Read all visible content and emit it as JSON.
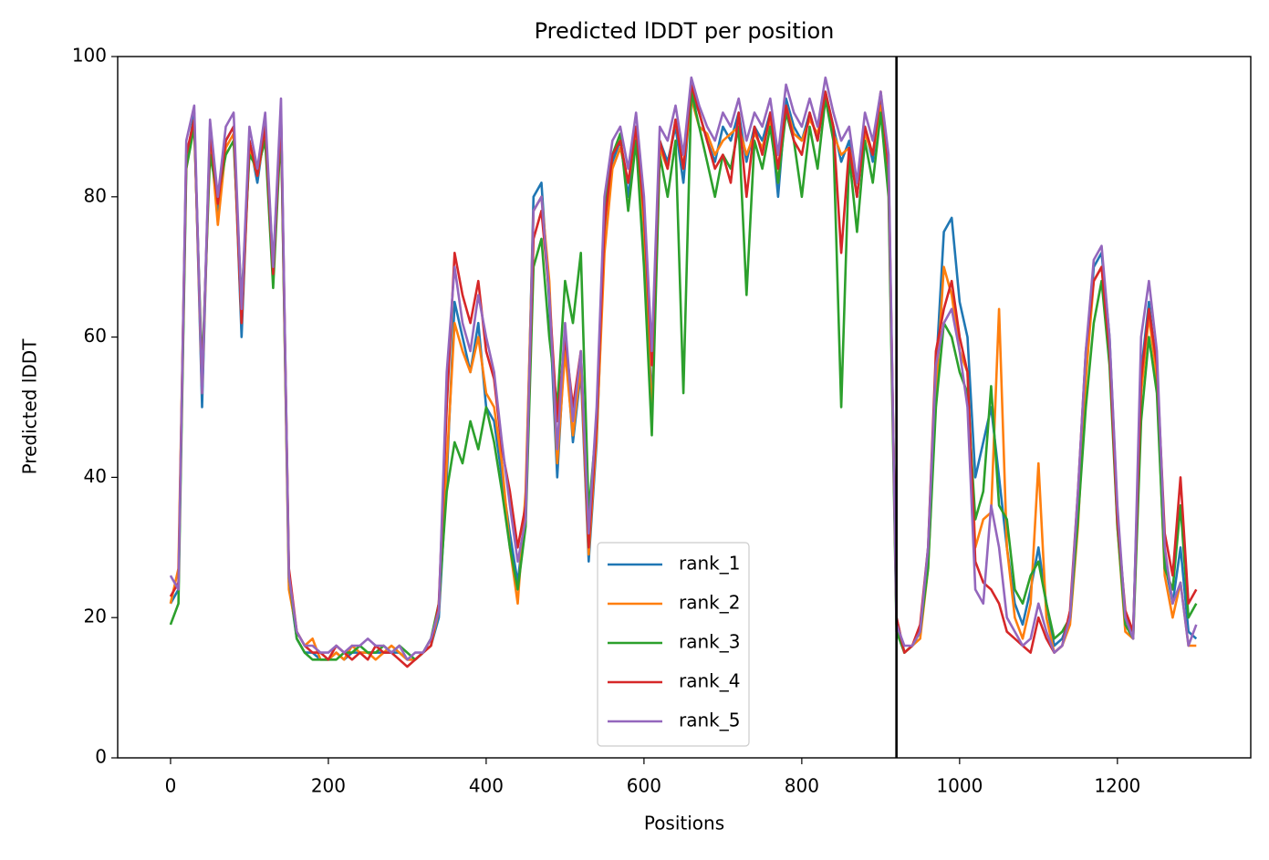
{
  "chart_data": {
    "type": "line",
    "title": "Predicted lDDT per position",
    "xlabel": "Positions",
    "ylabel": "Predicted lDDT",
    "xlim": [
      -67,
      1369
    ],
    "ylim": [
      0,
      100
    ],
    "xticks": [
      0,
      200,
      400,
      600,
      800,
      1000,
      1200
    ],
    "yticks": [
      0,
      20,
      40,
      60,
      80,
      100
    ],
    "legend": "lower center",
    "vline": 920,
    "vline_color": "#000000",
    "x": [
      0,
      10,
      20,
      30,
      40,
      50,
      60,
      70,
      80,
      90,
      100,
      110,
      120,
      130,
      140,
      150,
      160,
      170,
      180,
      190,
      200,
      210,
      220,
      230,
      240,
      250,
      260,
      270,
      280,
      290,
      300,
      310,
      320,
      330,
      340,
      350,
      360,
      370,
      380,
      390,
      400,
      410,
      420,
      430,
      440,
      450,
      460,
      470,
      480,
      490,
      500,
      510,
      520,
      530,
      540,
      550,
      560,
      570,
      580,
      590,
      600,
      610,
      620,
      630,
      640,
      650,
      660,
      670,
      680,
      690,
      700,
      710,
      720,
      730,
      740,
      750,
      760,
      770,
      780,
      790,
      800,
      810,
      820,
      830,
      840,
      850,
      860,
      870,
      880,
      890,
      900,
      910,
      920,
      930,
      940,
      950,
      960,
      970,
      980,
      990,
      1000,
      1010,
      1020,
      1030,
      1040,
      1050,
      1060,
      1070,
      1080,
      1090,
      1100,
      1110,
      1120,
      1130,
      1140,
      1150,
      1160,
      1170,
      1180,
      1190,
      1200,
      1210,
      1220,
      1230,
      1240,
      1250,
      1260,
      1270,
      1280,
      1290,
      1300
    ],
    "series": [
      {
        "name": "rank_1",
        "color": "#1f77b4",
        "values": [
          22,
          24,
          85,
          92,
          50,
          90,
          78,
          88,
          90,
          60,
          88,
          82,
          90,
          70,
          92,
          25,
          17,
          15,
          15,
          14,
          14,
          15,
          14,
          15,
          15,
          15,
          15,
          15,
          15,
          15,
          14,
          14,
          15,
          16,
          20,
          40,
          65,
          60,
          55,
          62,
          50,
          48,
          40,
          32,
          25,
          35,
          80,
          82,
          65,
          40,
          60,
          45,
          55,
          28,
          45,
          75,
          85,
          88,
          80,
          90,
          75,
          50,
          88,
          85,
          90,
          82,
          95,
          92,
          88,
          85,
          90,
          88,
          92,
          85,
          90,
          88,
          92,
          80,
          94,
          90,
          88,
          92,
          88,
          95,
          90,
          85,
          88,
          80,
          90,
          85,
          94,
          82,
          20,
          15,
          16,
          18,
          28,
          55,
          75,
          77,
          65,
          60,
          40,
          45,
          50,
          40,
          30,
          22,
          19,
          24,
          30,
          22,
          16,
          17,
          20,
          35,
          55,
          70,
          72,
          60,
          35,
          20,
          18,
          55,
          65,
          55,
          28,
          22,
          30,
          18,
          17
        ]
      },
      {
        "name": "rank_2",
        "color": "#ff7f0e",
        "values": [
          22,
          27,
          86,
          91,
          52,
          89,
          76,
          87,
          89,
          62,
          87,
          83,
          89,
          68,
          91,
          24,
          18,
          16,
          17,
          14,
          14,
          15,
          14,
          16,
          15,
          15,
          14,
          15,
          16,
          15,
          14,
          14,
          15,
          16,
          21,
          42,
          62,
          58,
          55,
          60,
          52,
          50,
          42,
          30,
          22,
          38,
          78,
          80,
          68,
          42,
          58,
          46,
          56,
          29,
          46,
          72,
          84,
          87,
          82,
          89,
          76,
          48,
          87,
          84,
          91,
          84,
          94,
          90,
          89,
          86,
          88,
          89,
          90,
          86,
          89,
          87,
          91,
          82,
          93,
          89,
          88,
          91,
          89,
          94,
          89,
          86,
          87,
          82,
          89,
          86,
          93,
          84,
          19,
          15,
          16,
          17,
          27,
          52,
          70,
          66,
          58,
          55,
          30,
          34,
          35,
          64,
          30,
          20,
          17,
          22,
          42,
          20,
          15,
          16,
          19,
          33,
          54,
          68,
          70,
          58,
          33,
          18,
          17,
          52,
          63,
          54,
          26,
          20,
          25,
          16,
          16
        ]
      },
      {
        "name": "rank_3",
        "color": "#2ca02c",
        "values": [
          19,
          22,
          84,
          90,
          55,
          86,
          80,
          86,
          88,
          65,
          86,
          84,
          88,
          67,
          90,
          26,
          17,
          15,
          14,
          14,
          14,
          14,
          15,
          15,
          16,
          15,
          15,
          16,
          15,
          16,
          15,
          14,
          15,
          17,
          22,
          38,
          45,
          42,
          48,
          44,
          50,
          45,
          38,
          30,
          24,
          33,
          70,
          74,
          60,
          50,
          68,
          62,
          72,
          35,
          48,
          78,
          86,
          89,
          78,
          88,
          70,
          46,
          86,
          80,
          88,
          52,
          95,
          90,
          85,
          80,
          86,
          84,
          90,
          66,
          88,
          84,
          90,
          82,
          92,
          88,
          80,
          90,
          84,
          94,
          88,
          50,
          86,
          75,
          88,
          82,
          92,
          80,
          18,
          15,
          16,
          18,
          27,
          50,
          62,
          60,
          55,
          52,
          34,
          38,
          53,
          36,
          34,
          24,
          22,
          26,
          28,
          22,
          17,
          18,
          20,
          34,
          50,
          62,
          68,
          56,
          33,
          19,
          17,
          48,
          60,
          52,
          27,
          24,
          36,
          20,
          22
        ]
      },
      {
        "name": "rank_4",
        "color": "#d62728",
        "values": [
          23,
          25,
          86,
          91,
          53,
          89,
          79,
          88,
          90,
          62,
          88,
          83,
          90,
          69,
          92,
          27,
          18,
          16,
          15,
          15,
          14,
          16,
          15,
          14,
          15,
          14,
          16,
          15,
          15,
          14,
          13,
          14,
          15,
          16,
          22,
          50,
          72,
          66,
          62,
          68,
          58,
          54,
          44,
          38,
          30,
          36,
          74,
          78,
          66,
          48,
          60,
          50,
          58,
          30,
          48,
          76,
          86,
          88,
          82,
          90,
          78,
          56,
          88,
          84,
          91,
          84,
          96,
          92,
          88,
          84,
          86,
          82,
          92,
          80,
          90,
          86,
          92,
          84,
          93,
          88,
          86,
          92,
          88,
          95,
          90,
          72,
          87,
          80,
          90,
          86,
          95,
          84,
          20,
          15,
          16,
          19,
          30,
          58,
          64,
          68,
          60,
          55,
          28,
          25,
          24,
          22,
          18,
          17,
          16,
          15,
          20,
          17,
          15,
          16,
          21,
          38,
          58,
          68,
          70,
          58,
          34,
          21,
          18,
          54,
          64,
          56,
          32,
          26,
          40,
          22,
          24
        ]
      },
      {
        "name": "rank_5",
        "color": "#9467bd",
        "values": [
          26,
          24,
          88,
          93,
          52,
          91,
          80,
          90,
          92,
          64,
          90,
          84,
          92,
          70,
          94,
          26,
          18,
          16,
          16,
          15,
          15,
          16,
          15,
          16,
          16,
          17,
          16,
          16,
          15,
          16,
          14,
          15,
          15,
          17,
          21,
          55,
          70,
          62,
          58,
          66,
          60,
          55,
          45,
          36,
          28,
          34,
          78,
          80,
          66,
          44,
          62,
          48,
          58,
          32,
          50,
          80,
          88,
          90,
          84,
          92,
          80,
          58,
          90,
          88,
          93,
          86,
          97,
          93,
          90,
          88,
          92,
          90,
          94,
          88,
          92,
          90,
          94,
          86,
          96,
          92,
          90,
          94,
          90,
          97,
          92,
          88,
          90,
          82,
          92,
          88,
          95,
          86,
          19,
          16,
          16,
          18,
          30,
          56,
          62,
          64,
          58,
          50,
          24,
          22,
          36,
          30,
          20,
          18,
          16,
          17,
          22,
          18,
          15,
          16,
          20,
          38,
          58,
          71,
          73,
          60,
          36,
          20,
          17,
          60,
          68,
          58,
          30,
          22,
          25,
          16,
          19
        ]
      }
    ]
  }
}
